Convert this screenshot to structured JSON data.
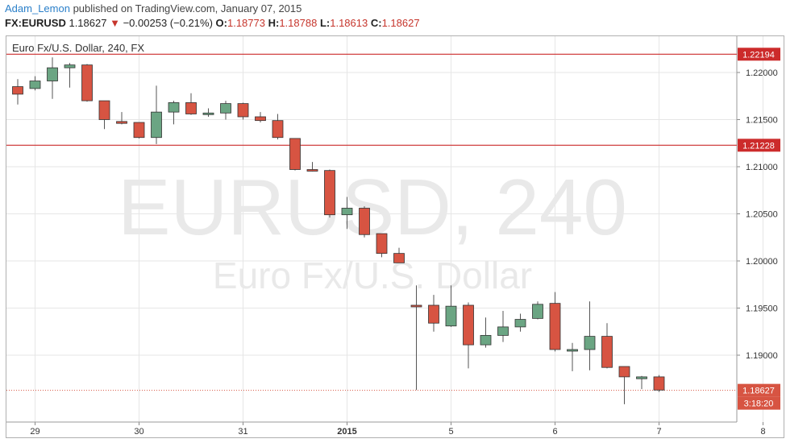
{
  "header": {
    "author": "Adam_Lemon",
    "published": "published on TradingView.com, January 07, 2015",
    "symbol": "FX:EURUSD",
    "last": "1.18627",
    "change": "−0.00253 (−0.21%)",
    "o_label": "O:",
    "o": "1.18773",
    "h_label": "H:",
    "h": "1.18788",
    "l_label": "L:",
    "l": "1.18613",
    "c_label": "C:",
    "c": "1.18627"
  },
  "chart_title": "Euro Fx/U.S. Dollar, 240, FX",
  "watermark": {
    "line1": "EURUSD, 240",
    "line2": "Euro Fx/U.S. Dollar"
  },
  "colors": {
    "up": "#6ba583",
    "down": "#d75442",
    "level": "#cc2b2b",
    "grid": "#e6e6e6"
  },
  "chart_data": {
    "type": "candlestick",
    "ylim": [
      1.1825,
      1.2255
    ],
    "y_ticks": [
      "1.22000",
      "1.21500",
      "1.21000",
      "1.20500",
      "1.20000",
      "1.19500",
      "1.19000"
    ],
    "x_ticks": [
      "29",
      "30",
      "31",
      "2015",
      "5",
      "6",
      "7",
      "8"
    ],
    "x_tick_index": [
      1,
      7,
      13,
      19,
      25,
      31,
      37,
      43
    ],
    "levels": [
      {
        "label": "1.22194",
        "value": 1.22194
      },
      {
        "label": "1.21228",
        "value": 1.21228
      }
    ],
    "last_price": {
      "label": "1.18627",
      "value": 1.18627,
      "timer": "3:18:20"
    },
    "candles": [
      {
        "i": 0,
        "o": 1.2185,
        "h": 1.2193,
        "l": 1.2166,
        "c": 1.2177
      },
      {
        "i": 1,
        "o": 1.2183,
        "h": 1.2196,
        "l": 1.2181,
        "c": 1.2191
      },
      {
        "i": 2,
        "o": 1.2191,
        "h": 1.2216,
        "l": 1.2172,
        "c": 1.2205
      },
      {
        "i": 3,
        "o": 1.2205,
        "h": 1.221,
        "l": 1.2184,
        "c": 1.2208
      },
      {
        "i": 4,
        "o": 1.2208,
        "h": 1.2209,
        "l": 1.2169,
        "c": 1.217
      },
      {
        "i": 5,
        "o": 1.217,
        "h": 1.217,
        "l": 1.214,
        "c": 1.215
      },
      {
        "i": 6,
        "o": 1.2148,
        "h": 1.2158,
        "l": 1.2145,
        "c": 1.2146
      },
      {
        "i": 7,
        "o": 1.2147,
        "h": 1.2147,
        "l": 1.213,
        "c": 1.2131
      },
      {
        "i": 8,
        "o": 1.2131,
        "h": 1.2186,
        "l": 1.2124,
        "c": 1.2158
      },
      {
        "i": 9,
        "o": 1.2158,
        "h": 1.217,
        "l": 1.2145,
        "c": 1.2168
      },
      {
        "i": 10,
        "o": 1.2168,
        "h": 1.2178,
        "l": 1.2155,
        "c": 1.2156
      },
      {
        "i": 11,
        "o": 1.2156,
        "h": 1.2162,
        "l": 1.2153,
        "c": 1.2157
      },
      {
        "i": 12,
        "o": 1.2157,
        "h": 1.217,
        "l": 1.215,
        "c": 1.2167
      },
      {
        "i": 13,
        "o": 1.2167,
        "h": 1.2168,
        "l": 1.215,
        "c": 1.2153
      },
      {
        "i": 14,
        "o": 1.2153,
        "h": 1.2158,
        "l": 1.2147,
        "c": 1.2149
      },
      {
        "i": 15,
        "o": 1.2149,
        "h": 1.2156,
        "l": 1.2129,
        "c": 1.2131
      },
      {
        "i": 16,
        "o": 1.213,
        "h": 1.213,
        "l": 1.2096,
        "c": 1.2097
      },
      {
        "i": 17,
        "o": 1.2097,
        "h": 1.2105,
        "l": 1.2095,
        "c": 1.2096
      },
      {
        "i": 18,
        "o": 1.2096,
        "h": 1.2097,
        "l": 1.2046,
        "c": 1.2049
      },
      {
        "i": 19,
        "o": 1.2049,
        "h": 1.2068,
        "l": 1.2034,
        "c": 1.2056
      },
      {
        "i": 20,
        "o": 1.2056,
        "h": 1.2058,
        "l": 1.2025,
        "c": 1.2028
      },
      {
        "i": 21,
        "o": 1.2029,
        "h": 1.2029,
        "l": 1.2004,
        "c": 1.2008
      },
      {
        "i": 22,
        "o": 1.2008,
        "h": 1.2014,
        "l": 1.1998,
        "c": 1.1998
      },
      {
        "i": 23,
        "o": 1.1953,
        "h": 1.1974,
        "l": 1.1863,
        "c": 1.1952
      },
      {
        "i": 24,
        "o": 1.1953,
        "h": 1.1964,
        "l": 1.1925,
        "c": 1.1934
      },
      {
        "i": 25,
        "o": 1.1931,
        "h": 1.1974,
        "l": 1.193,
        "c": 1.1952
      },
      {
        "i": 26,
        "o": 1.1953,
        "h": 1.1956,
        "l": 1.1886,
        "c": 1.1911
      },
      {
        "i": 27,
        "o": 1.1911,
        "h": 1.194,
        "l": 1.1908,
        "c": 1.1921
      },
      {
        "i": 28,
        "o": 1.1921,
        "h": 1.1947,
        "l": 1.1914,
        "c": 1.193
      },
      {
        "i": 29,
        "o": 1.193,
        "h": 1.1944,
        "l": 1.1925,
        "c": 1.1938
      },
      {
        "i": 30,
        "o": 1.1939,
        "h": 1.1957,
        "l": 1.1938,
        "c": 1.1954
      },
      {
        "i": 31,
        "o": 1.1955,
        "h": 1.1967,
        "l": 1.1904,
        "c": 1.1906
      },
      {
        "i": 32,
        "o": 1.1906,
        "h": 1.1913,
        "l": 1.1883,
        "c": 1.1906
      },
      {
        "i": 33,
        "o": 1.1906,
        "h": 1.1957,
        "l": 1.1884,
        "c": 1.192
      },
      {
        "i": 34,
        "o": 1.192,
        "h": 1.1934,
        "l": 1.1886,
        "c": 1.1887
      },
      {
        "i": 35,
        "o": 1.1888,
        "h": 1.1888,
        "l": 1.1848,
        "c": 1.1877
      },
      {
        "i": 36,
        "o": 1.1875,
        "h": 1.1878,
        "l": 1.1864,
        "c": 1.1877
      },
      {
        "i": 37,
        "o": 1.1877,
        "h": 1.1879,
        "l": 1.1861,
        "c": 1.1863
      }
    ]
  }
}
